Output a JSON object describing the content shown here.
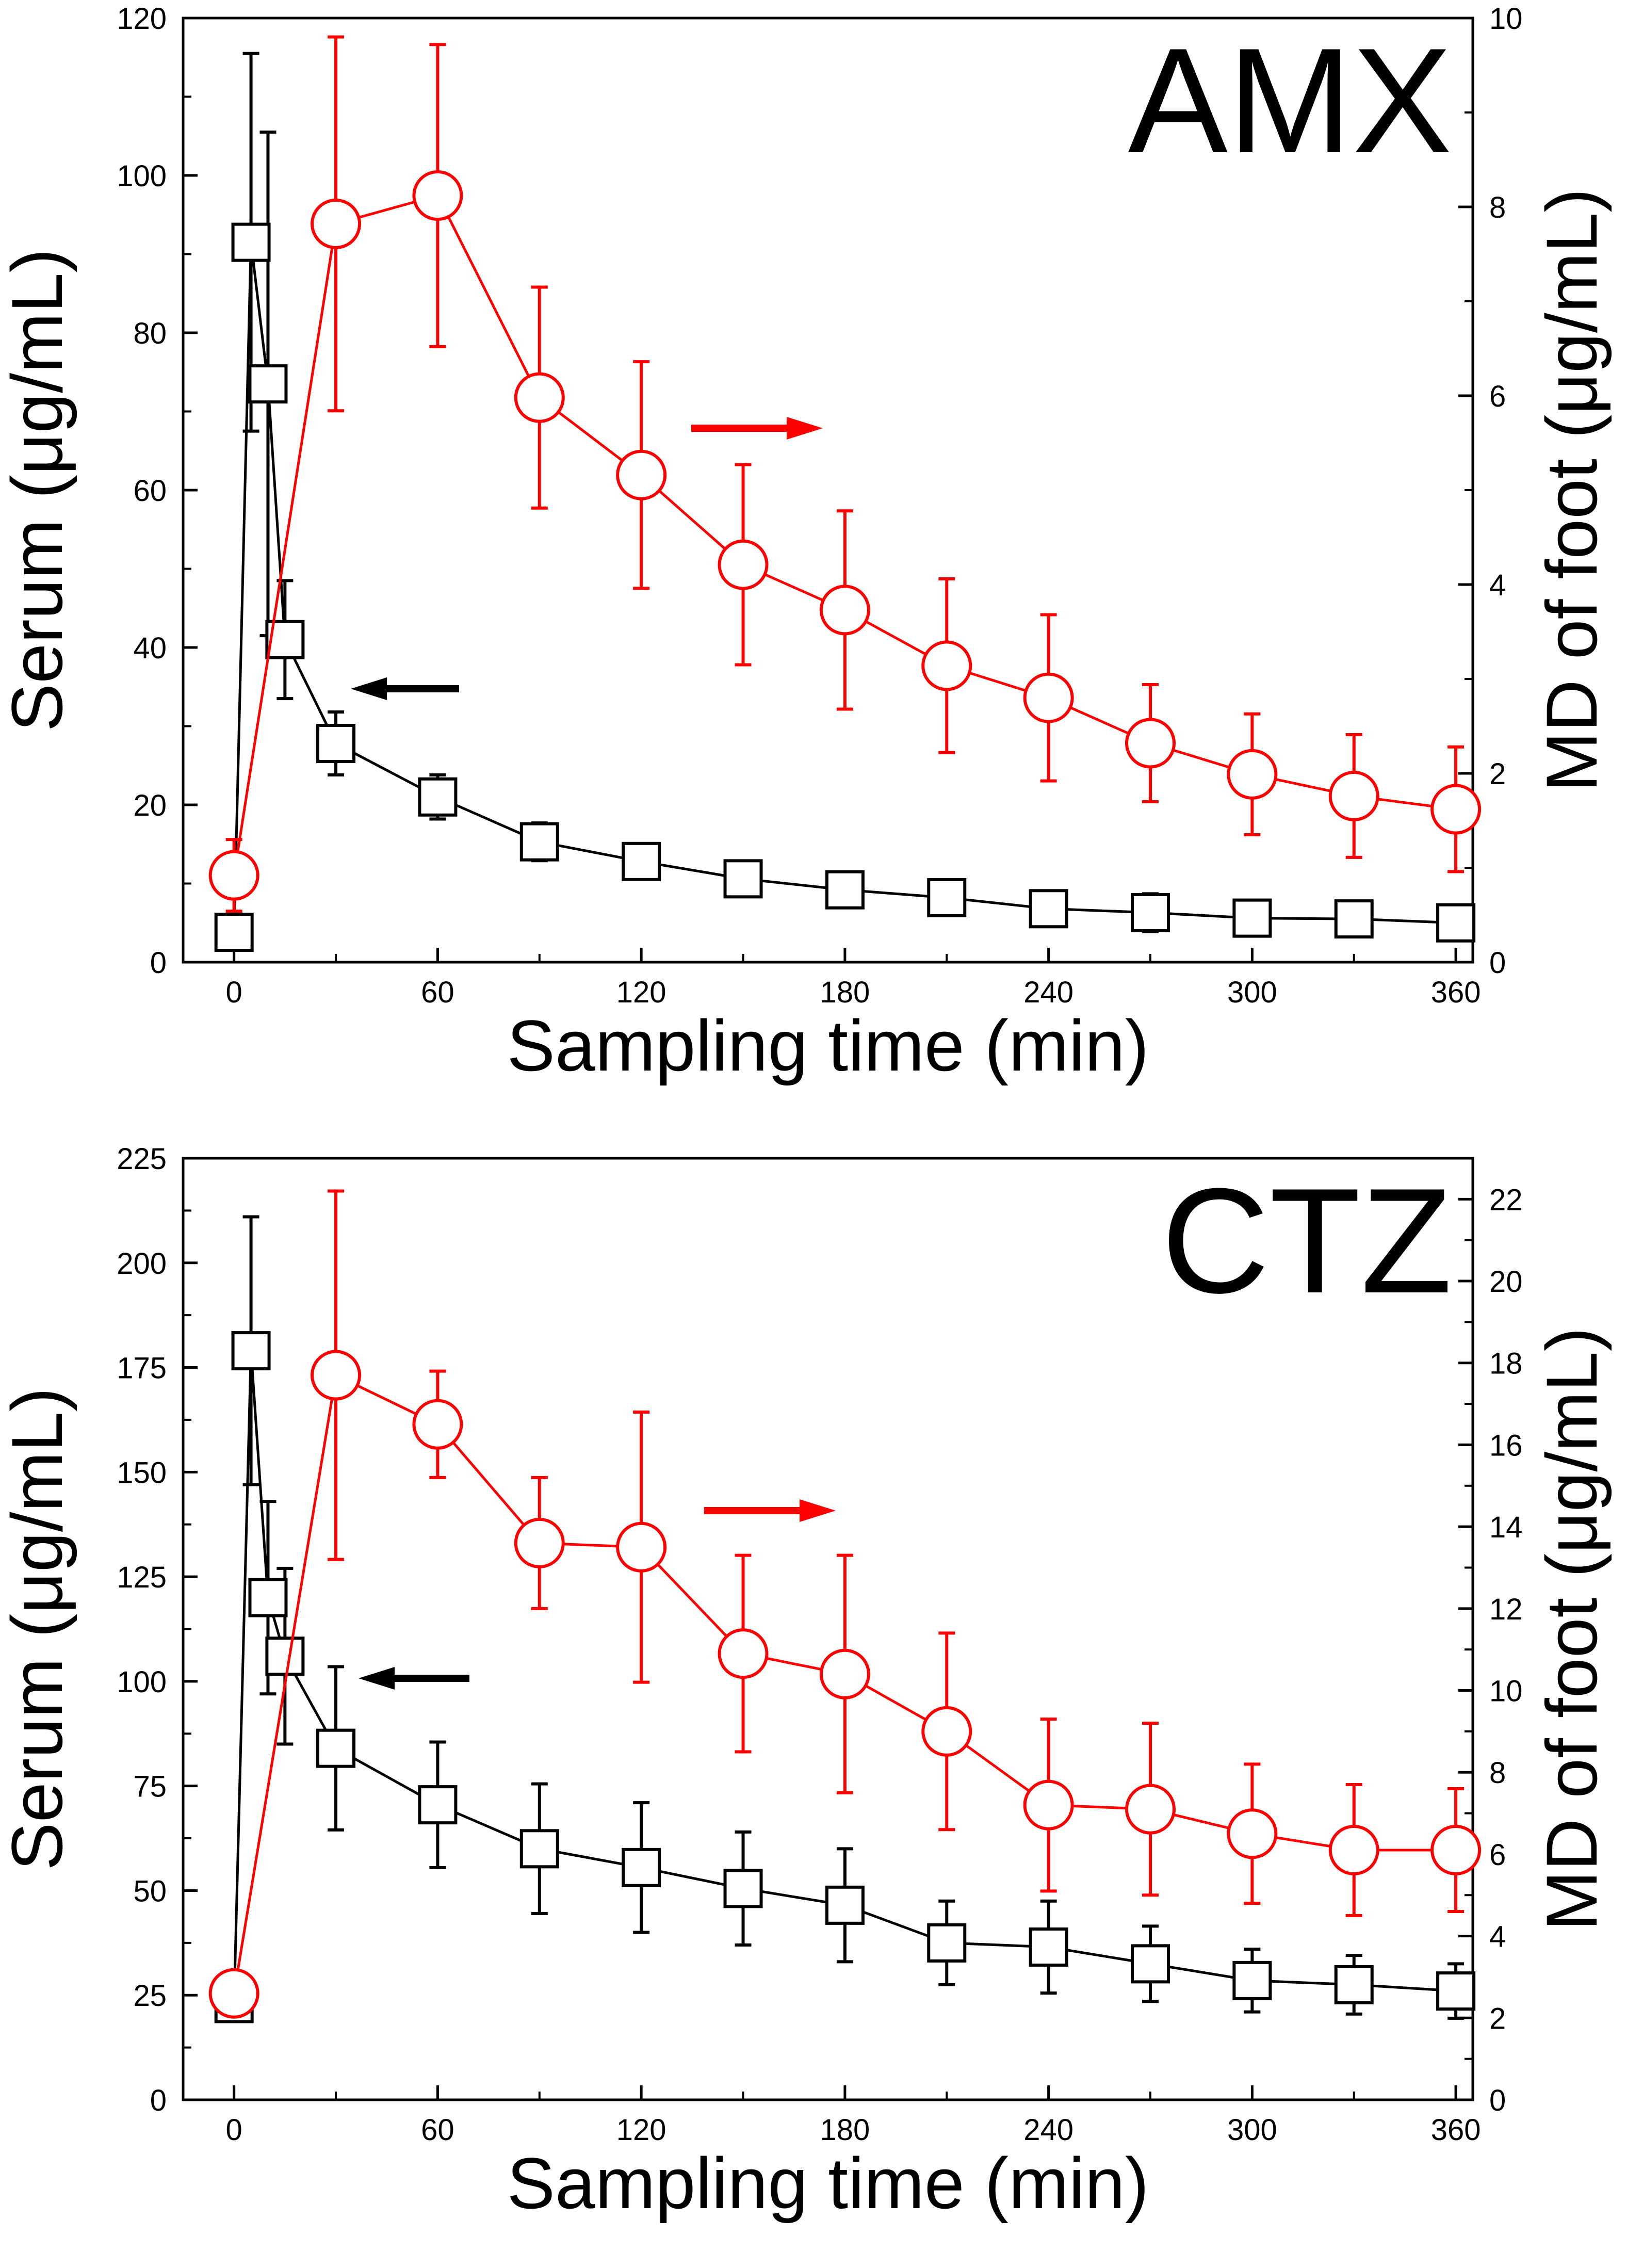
{
  "chart_data": [
    {
      "type": "line",
      "panel_label": "AMX",
      "xlabel": "Sampling time (min)",
      "ylabel_left": "Serum (μg/mL)",
      "ylabel_right": "MD of foot (μg/mL)",
      "xlim": [
        -15,
        365
      ],
      "xticks": [
        0,
        60,
        120,
        180,
        240,
        300,
        360
      ],
      "ylim_left": [
        0,
        120
      ],
      "yticks_left": [
        0,
        20,
        40,
        60,
        80,
        100,
        120
      ],
      "ylim_right": [
        0,
        10
      ],
      "yticks_right": [
        0,
        2,
        4,
        6,
        8,
        10
      ],
      "series": [
        {
          "name": "Serum",
          "axis": "left",
          "color": "#000000",
          "marker": "square",
          "arrow": "left",
          "x": [
            0,
            5,
            10,
            15,
            30,
            60,
            90,
            120,
            150,
            180,
            210,
            240,
            270,
            300,
            330,
            360
          ],
          "y": [
            3.8,
            91.5,
            73.5,
            41,
            27.8,
            21,
            15.3,
            12.8,
            10.6,
            9.2,
            8.2,
            6.8,
            6.3,
            5.6,
            5.5,
            5
          ],
          "err_up": [
            1,
            24,
            32,
            7.5,
            4,
            2.8,
            2.4,
            2,
            2,
            1.8,
            2.2,
            2.1,
            2.4,
            1.9,
            1.6,
            1.8
          ],
          "err_down": [
            1,
            24,
            32,
            7.5,
            4,
            2.8,
            2.4,
            2,
            2,
            1.8,
            2.2,
            2.1,
            2.4,
            1.9,
            1.6,
            1.8
          ]
        },
        {
          "name": "MD of foot",
          "axis": "right",
          "color": "#ff0000",
          "marker": "circle",
          "arrow": "right",
          "x": [
            0,
            30,
            60,
            90,
            120,
            150,
            180,
            210,
            240,
            270,
            300,
            330,
            360
          ],
          "y": [
            0.92,
            7.82,
            8.12,
            5.98,
            5.16,
            4.21,
            3.73,
            3.14,
            2.8,
            2.32,
            1.99,
            1.76,
            1.62
          ],
          "err_up": [
            0.38,
            1.98,
            1.6,
            1.17,
            1.2,
            1.06,
            1.05,
            0.92,
            0.88,
            0.62,
            0.64,
            0.65,
            0.66
          ],
          "err_down": [
            0.38,
            1.98,
            1.6,
            1.17,
            1.2,
            1.06,
            1.05,
            0.92,
            0.88,
            0.62,
            0.64,
            0.65,
            0.66
          ]
        }
      ]
    },
    {
      "type": "line",
      "panel_label": "CTZ",
      "xlabel": "Sampling time (min)",
      "ylabel_left": "Serum (μg/mL)",
      "ylabel_right": "MD of foot (μg/mL)",
      "xlim": [
        -15,
        365
      ],
      "xticks": [
        0,
        60,
        120,
        180,
        240,
        300,
        360
      ],
      "ylim_left": [
        0,
        225
      ],
      "yticks_left": [
        0,
        25,
        50,
        75,
        100,
        125,
        150,
        175,
        200,
        225
      ],
      "ylim_right": [
        0,
        23
      ],
      "yticks_right": [
        0,
        2,
        4,
        6,
        8,
        10,
        12,
        14,
        16,
        18,
        20,
        22
      ],
      "series": [
        {
          "name": "Serum",
          "axis": "left",
          "color": "#000000",
          "marker": "square",
          "arrow": "left",
          "x": [
            0,
            5,
            10,
            15,
            30,
            60,
            90,
            120,
            150,
            180,
            210,
            240,
            270,
            300,
            330,
            360
          ],
          "y": [
            23,
            179,
            120,
            106,
            84,
            70.5,
            60,
            55.5,
            50.5,
            46.5,
            37.5,
            36.5,
            32.5,
            28.5,
            27.5,
            26
          ],
          "err_up": [
            3,
            32,
            23,
            21,
            19.5,
            15,
            15.5,
            15.5,
            13.5,
            13.5,
            10,
            11,
            9,
            7.5,
            7,
            6.5
          ],
          "err_down": [
            3,
            32,
            23,
            21,
            19.5,
            15,
            15.5,
            15.5,
            13.5,
            13.5,
            10,
            11,
            9,
            7.5,
            7,
            6.5
          ]
        },
        {
          "name": "MD of foot",
          "axis": "right",
          "color": "#ff0000",
          "marker": "circle",
          "arrow": "right",
          "x": [
            0,
            30,
            60,
            90,
            120,
            150,
            180,
            210,
            240,
            270,
            300,
            330,
            360
          ],
          "y": [
            2.6,
            17.7,
            16.5,
            13.6,
            13.5,
            10.9,
            10.4,
            9,
            7.2,
            7.1,
            6.5,
            6.1,
            6.1
          ],
          "err_up": [
            0.4,
            4.5,
            1.3,
            1.6,
            3.3,
            2.4,
            2.9,
            2.4,
            2.1,
            2.1,
            1.7,
            1.6,
            1.5
          ],
          "err_down": [
            0.4,
            4.5,
            1.3,
            1.6,
            3.3,
            2.4,
            2.9,
            2.4,
            2.1,
            2.1,
            1.7,
            1.6,
            1.5
          ]
        }
      ]
    }
  ]
}
